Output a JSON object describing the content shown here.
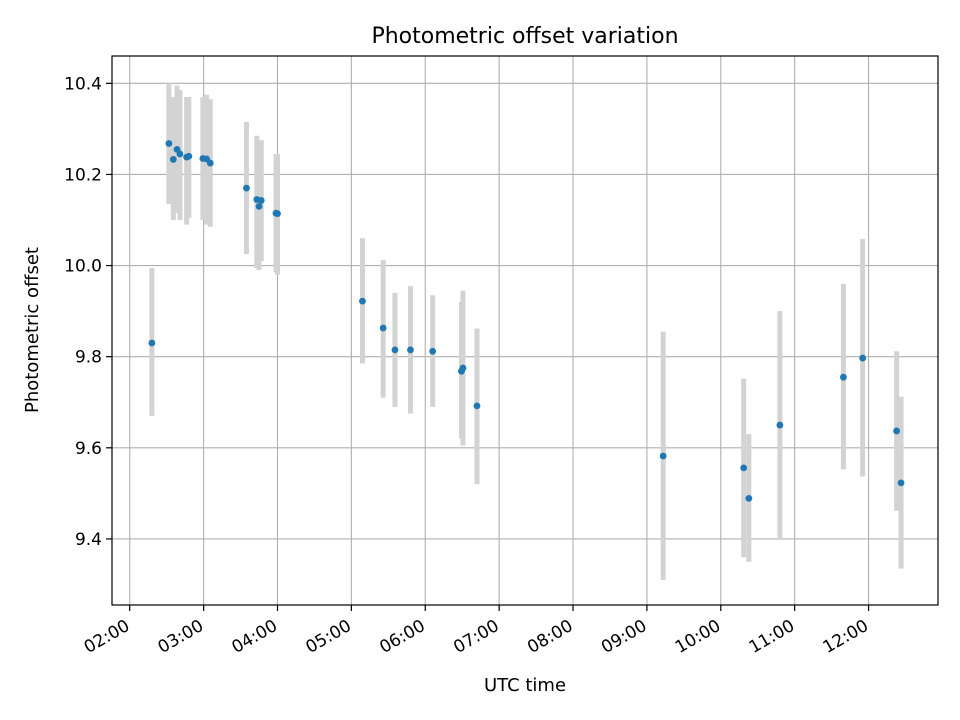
{
  "chart_data": {
    "type": "scatter",
    "title": "Photometric offset variation",
    "xlabel": "UTC time",
    "ylabel": "Photometric offset",
    "x_unit": "hour of day (UTC)",
    "xlim": [
      1.76,
      12.94
    ],
    "ylim": [
      9.255,
      10.46
    ],
    "grid": true,
    "x_ticks": [
      {
        "value": 2,
        "label": "02:00"
      },
      {
        "value": 3,
        "label": "03:00"
      },
      {
        "value": 4,
        "label": "04:00"
      },
      {
        "value": 5,
        "label": "05:00"
      },
      {
        "value": 6,
        "label": "06:00"
      },
      {
        "value": 7,
        "label": "07:00"
      },
      {
        "value": 8,
        "label": "08:00"
      },
      {
        "value": 9,
        "label": "09:00"
      },
      {
        "value": 10,
        "label": "10:00"
      },
      {
        "value": 11,
        "label": "11:00"
      },
      {
        "value": 12,
        "label": "12:00"
      }
    ],
    "y_ticks": [
      {
        "value": 9.4,
        "label": "9.4"
      },
      {
        "value": 9.6,
        "label": "9.6"
      },
      {
        "value": 9.8,
        "label": "9.8"
      },
      {
        "value": 10.0,
        "label": "10.0"
      },
      {
        "value": 10.2,
        "label": "10.2"
      },
      {
        "value": 10.4,
        "label": "10.4"
      }
    ],
    "colors": {
      "points": "#1f77b4",
      "errorbars": "#d3d3d3",
      "grid": "#b0b0b0"
    },
    "points": [
      {
        "x": 2.3,
        "y": 9.83,
        "ylow": 9.67,
        "yhigh": 9.995
      },
      {
        "x": 2.53,
        "y": 10.268,
        "ylow": 10.135,
        "yhigh": 10.4
      },
      {
        "x": 2.59,
        "y": 10.233,
        "ylow": 10.1,
        "yhigh": 10.37
      },
      {
        "x": 2.64,
        "y": 10.255,
        "ylow": 10.115,
        "yhigh": 10.395
      },
      {
        "x": 2.68,
        "y": 10.245,
        "ylow": 10.1,
        "yhigh": 10.385
      },
      {
        "x": 2.77,
        "y": 10.238,
        "ylow": 10.09,
        "yhigh": 10.37
      },
      {
        "x": 2.8,
        "y": 10.24,
        "ylow": 10.105,
        "yhigh": 10.37
      },
      {
        "x": 2.99,
        "y": 10.235,
        "ylow": 10.1,
        "yhigh": 10.37
      },
      {
        "x": 3.04,
        "y": 10.234,
        "ylow": 10.09,
        "yhigh": 10.375
      },
      {
        "x": 3.09,
        "y": 10.225,
        "ylow": 10.085,
        "yhigh": 10.365
      },
      {
        "x": 3.58,
        "y": 10.17,
        "ylow": 10.025,
        "yhigh": 10.315
      },
      {
        "x": 3.72,
        "y": 10.145,
        "ylow": 9.995,
        "yhigh": 10.285
      },
      {
        "x": 3.75,
        "y": 10.13,
        "ylow": 9.99,
        "yhigh": 10.275
      },
      {
        "x": 3.78,
        "y": 10.143,
        "ylow": 10.01,
        "yhigh": 10.275
      },
      {
        "x": 3.98,
        "y": 10.115,
        "ylow": 9.985,
        "yhigh": 10.245
      },
      {
        "x": 4.0,
        "y": 10.114,
        "ylow": 9.98,
        "yhigh": 10.245
      },
      {
        "x": 5.15,
        "y": 9.922,
        "ylow": 9.785,
        "yhigh": 10.06
      },
      {
        "x": 5.43,
        "y": 9.863,
        "ylow": 9.71,
        "yhigh": 10.012
      },
      {
        "x": 5.59,
        "y": 9.815,
        "ylow": 9.69,
        "yhigh": 9.94
      },
      {
        "x": 5.8,
        "y": 9.815,
        "ylow": 9.675,
        "yhigh": 9.955
      },
      {
        "x": 6.1,
        "y": 9.812,
        "ylow": 9.69,
        "yhigh": 9.935
      },
      {
        "x": 6.49,
        "y": 9.768,
        "ylow": 9.62,
        "yhigh": 9.92
      },
      {
        "x": 6.51,
        "y": 9.775,
        "ylow": 9.605,
        "yhigh": 9.945
      },
      {
        "x": 6.7,
        "y": 9.692,
        "ylow": 9.52,
        "yhigh": 9.862
      },
      {
        "x": 9.22,
        "y": 9.582,
        "ylow": 9.31,
        "yhigh": 9.855
      },
      {
        "x": 10.31,
        "y": 9.556,
        "ylow": 9.36,
        "yhigh": 9.752
      },
      {
        "x": 10.38,
        "y": 9.489,
        "ylow": 9.35,
        "yhigh": 9.63
      },
      {
        "x": 10.8,
        "y": 9.65,
        "ylow": 9.4,
        "yhigh": 9.9
      },
      {
        "x": 11.66,
        "y": 9.755,
        "ylow": 9.553,
        "yhigh": 9.96
      },
      {
        "x": 11.92,
        "y": 9.797,
        "ylow": 9.537,
        "yhigh": 10.058
      },
      {
        "x": 12.38,
        "y": 9.637,
        "ylow": 9.462,
        "yhigh": 9.812
      },
      {
        "x": 12.44,
        "y": 9.523,
        "ylow": 9.335,
        "yhigh": 9.712
      }
    ]
  }
}
